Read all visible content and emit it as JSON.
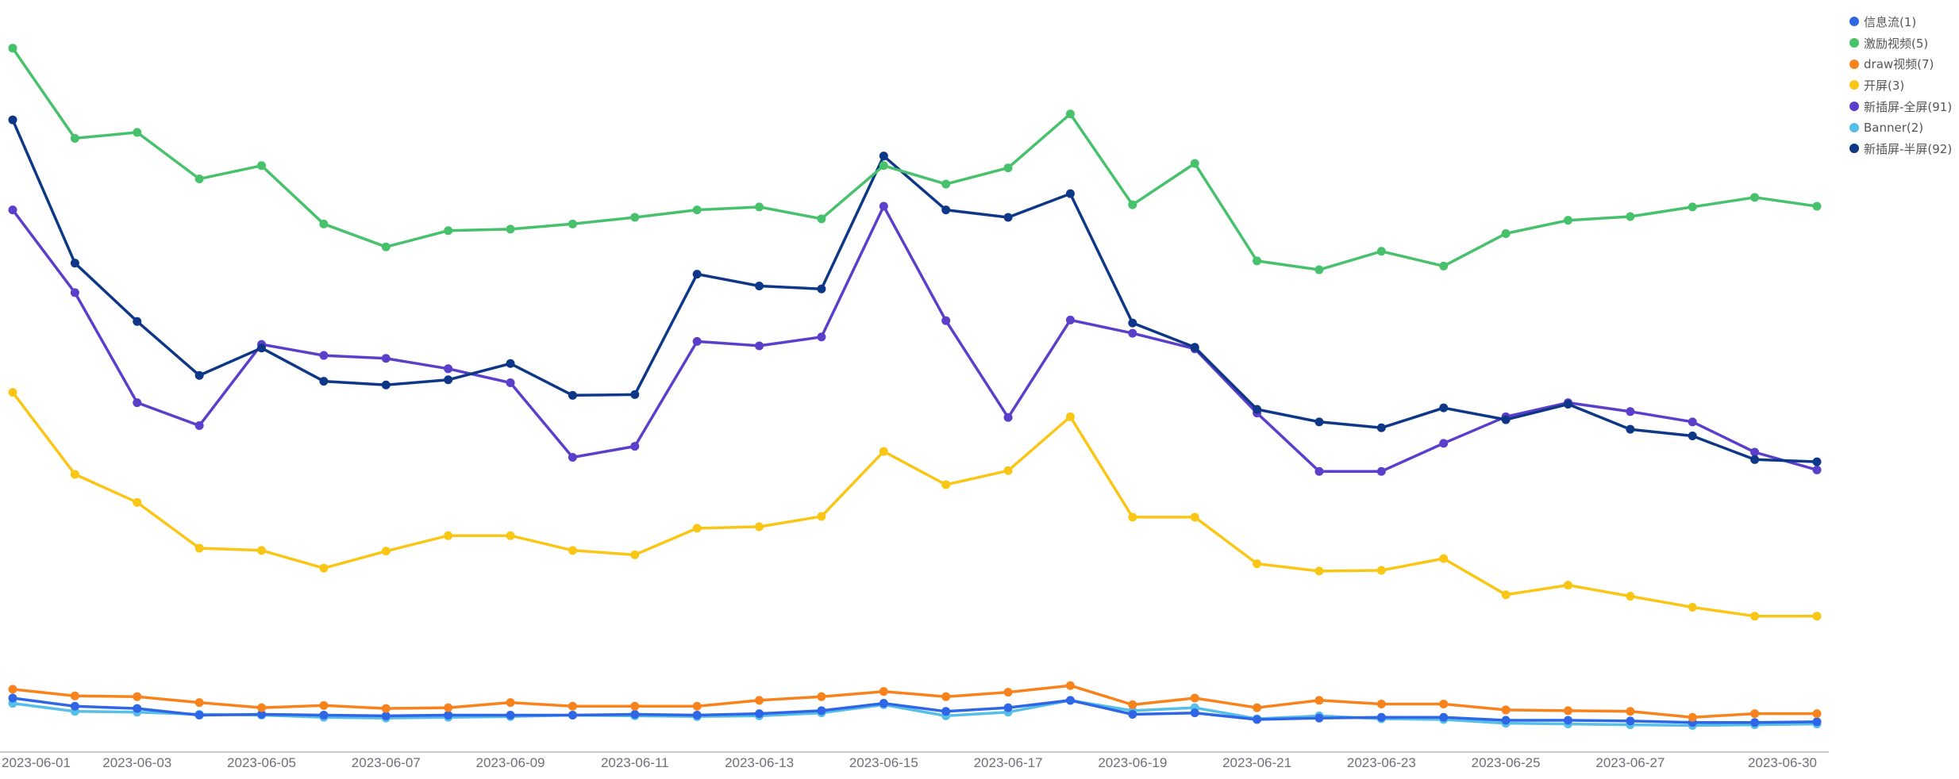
{
  "chart_data": {
    "type": "line",
    "title": "",
    "xlabel": "",
    "ylabel": "",
    "ylim": [
      0,
      100
    ],
    "grid": false,
    "legend_position": "top-right",
    "x": [
      "2023-06-01",
      "2023-06-02",
      "2023-06-03",
      "2023-06-04",
      "2023-06-05",
      "2023-06-06",
      "2023-06-07",
      "2023-06-08",
      "2023-06-09",
      "2023-06-10",
      "2023-06-11",
      "2023-06-12",
      "2023-06-13",
      "2023-06-14",
      "2023-06-15",
      "2023-06-16",
      "2023-06-17",
      "2023-06-18",
      "2023-06-19",
      "2023-06-20",
      "2023-06-21",
      "2023-06-22",
      "2023-06-23",
      "2023-06-24",
      "2023-06-25",
      "2023-06-26",
      "2023-06-27",
      "2023-06-28",
      "2023-06-29",
      "2023-06-30"
    ],
    "x_tick_labels": [
      "2023-06-01",
      "2023-06-03",
      "2023-06-05",
      "2023-06-07",
      "2023-06-09",
      "2023-06-11",
      "2023-06-13",
      "2023-06-15",
      "2023-06-17",
      "2023-06-19",
      "2023-06-21",
      "2023-06-23",
      "2023-06-25",
      "2023-06-27",
      "2023-06-30"
    ],
    "series": [
      {
        "name": "激励视频(5)",
        "color": "#47c16b",
        "values": [
          95.3,
          83.1,
          83.9,
          77.6,
          79.4,
          71.5,
          68.4,
          70.6,
          70.8,
          71.5,
          72.4,
          73.4,
          73.8,
          72.2,
          79.4,
          76.9,
          79.1,
          86.4,
          74.1,
          79.7,
          66.5,
          65.3,
          67.8,
          65.8,
          70.2,
          72.0,
          72.5,
          73.8,
          75.1,
          73.9
        ]
      },
      {
        "name": "新插屏-半屏(92)",
        "color": "#0e3788",
        "values": [
          85.6,
          66.2,
          58.3,
          51.0,
          54.7,
          50.2,
          49.7,
          50.4,
          52.6,
          48.3,
          48.4,
          64.7,
          63.1,
          62.7,
          80.7,
          73.4,
          72.4,
          75.6,
          58.1,
          54.8,
          46.4,
          44.7,
          43.9,
          46.6,
          45.0,
          47.1,
          43.7,
          42.8,
          39.6,
          39.3
        ]
      },
      {
        "name": "新插屏-全屏(91)",
        "color": "#5b3fcb",
        "values": [
          73.4,
          62.2,
          47.3,
          44.2,
          55.2,
          53.7,
          53.3,
          51.9,
          50.0,
          39.9,
          41.4,
          55.6,
          55.0,
          56.2,
          73.9,
          58.4,
          45.3,
          58.5,
          56.7,
          54.6,
          45.9,
          38.0,
          38.0,
          41.8,
          45.4,
          47.3,
          46.1,
          44.7,
          40.6,
          38.2
        ]
      },
      {
        "name": "开屏(3)",
        "color": "#fac616",
        "values": [
          48.7,
          37.6,
          33.8,
          27.6,
          27.3,
          24.9,
          27.2,
          29.3,
          29.3,
          27.3,
          26.7,
          30.3,
          30.5,
          31.9,
          40.7,
          36.2,
          38.1,
          45.4,
          31.8,
          31.8,
          25.5,
          24.5,
          24.6,
          26.2,
          21.3,
          22.6,
          21.1,
          19.6,
          18.4,
          18.4
        ]
      },
      {
        "name": "draw视频(7)",
        "color": "#f8831d",
        "values": [
          8.5,
          7.6,
          7.5,
          6.7,
          6.0,
          6.3,
          5.9,
          6.0,
          6.7,
          6.2,
          6.2,
          6.2,
          7.0,
          7.5,
          8.2,
          7.5,
          8.1,
          9.0,
          6.4,
          7.3,
          6.0,
          7.0,
          6.5,
          6.5,
          5.7,
          5.6,
          5.5,
          4.7,
          5.2,
          5.2
        ]
      },
      {
        "name": "信息流(1)",
        "color": "#2f66e6",
        "values": [
          7.3,
          6.2,
          5.9,
          5.0,
          5.1,
          5.0,
          4.9,
          5.0,
          5.0,
          5.0,
          5.1,
          5.0,
          5.2,
          5.6,
          6.6,
          5.5,
          6.0,
          7.0,
          5.1,
          5.3,
          4.4,
          4.6,
          4.7,
          4.7,
          4.3,
          4.3,
          4.2,
          4.0,
          4.0,
          4.1
        ]
      },
      {
        "name": "Banner(2)",
        "color": "#56bfe7",
        "values": [
          6.6,
          5.5,
          5.4,
          5.1,
          5.0,
          4.7,
          4.6,
          4.7,
          4.8,
          5.0,
          4.9,
          4.8,
          4.9,
          5.3,
          6.4,
          4.9,
          5.4,
          7.0,
          5.6,
          6.0,
          4.5,
          4.9,
          4.5,
          4.4,
          3.9,
          3.8,
          3.7,
          3.6,
          3.7,
          3.8
        ]
      }
    ]
  },
  "legend": {
    "items": [
      {
        "label": "信息流(1)",
        "color": "#2f66e6"
      },
      {
        "label": "激励视频(5)",
        "color": "#47c16b"
      },
      {
        "label": "draw视频(7)",
        "color": "#f8831d"
      },
      {
        "label": "开屏(3)",
        "color": "#fac616"
      },
      {
        "label": "新插屏-全屏(91)",
        "color": "#5b3fcb"
      },
      {
        "label": "Banner(2)",
        "color": "#56bfe7"
      },
      {
        "label": "新插屏-半屏(92)",
        "color": "#0e3788"
      }
    ]
  },
  "axis_color": "#999999"
}
